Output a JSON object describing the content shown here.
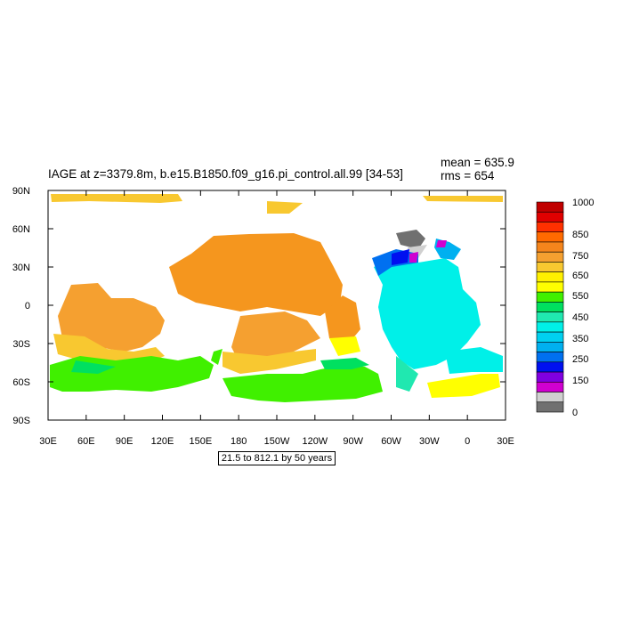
{
  "title": "IAGE at z=3379.8m, b.e15.B1850.f09_g16.pi_control.all.99 [34-53]",
  "mean_label": "mean = 635.9",
  "rms_label": "rms = 654",
  "contour_note": "21.5 to 812.1 by 50 years",
  "axes": {
    "x_ticks": [
      "30E",
      "60E",
      "90E",
      "120E",
      "150E",
      "180",
      "150W",
      "120W",
      "90W",
      "60W",
      "30W",
      "0",
      "30E"
    ],
    "y_ticks": [
      "90N",
      "60N",
      "30N",
      "0",
      "30S",
      "60S",
      "90S"
    ]
  },
  "colorbar": {
    "labels": [
      "1000",
      "850",
      "750",
      "650",
      "550",
      "450",
      "350",
      "250",
      "150",
      "0"
    ],
    "colors": [
      "#c00000",
      "#e00000",
      "#ff3000",
      "#ff6a00",
      "#f5851c",
      "#f5a030",
      "#f8c830",
      "#fff000",
      "#ffff00",
      "#40f000",
      "#00e060",
      "#20e8b0",
      "#00f0e8",
      "#00d0f0",
      "#00b0f0",
      "#0070f0",
      "#0010f0",
      "#8000e0",
      "#d000d0",
      "#d0d0d0",
      "#707070"
    ]
  },
  "regions": [
    {
      "name": "north-pacific-atlantic-block",
      "color": "#f5961e"
    },
    {
      "name": "southern-ocean-band",
      "color": "#40f000"
    },
    {
      "name": "atlantic-basin",
      "color": "#00f0e8"
    },
    {
      "name": "arctic-deep",
      "color": "#707070"
    }
  ]
}
